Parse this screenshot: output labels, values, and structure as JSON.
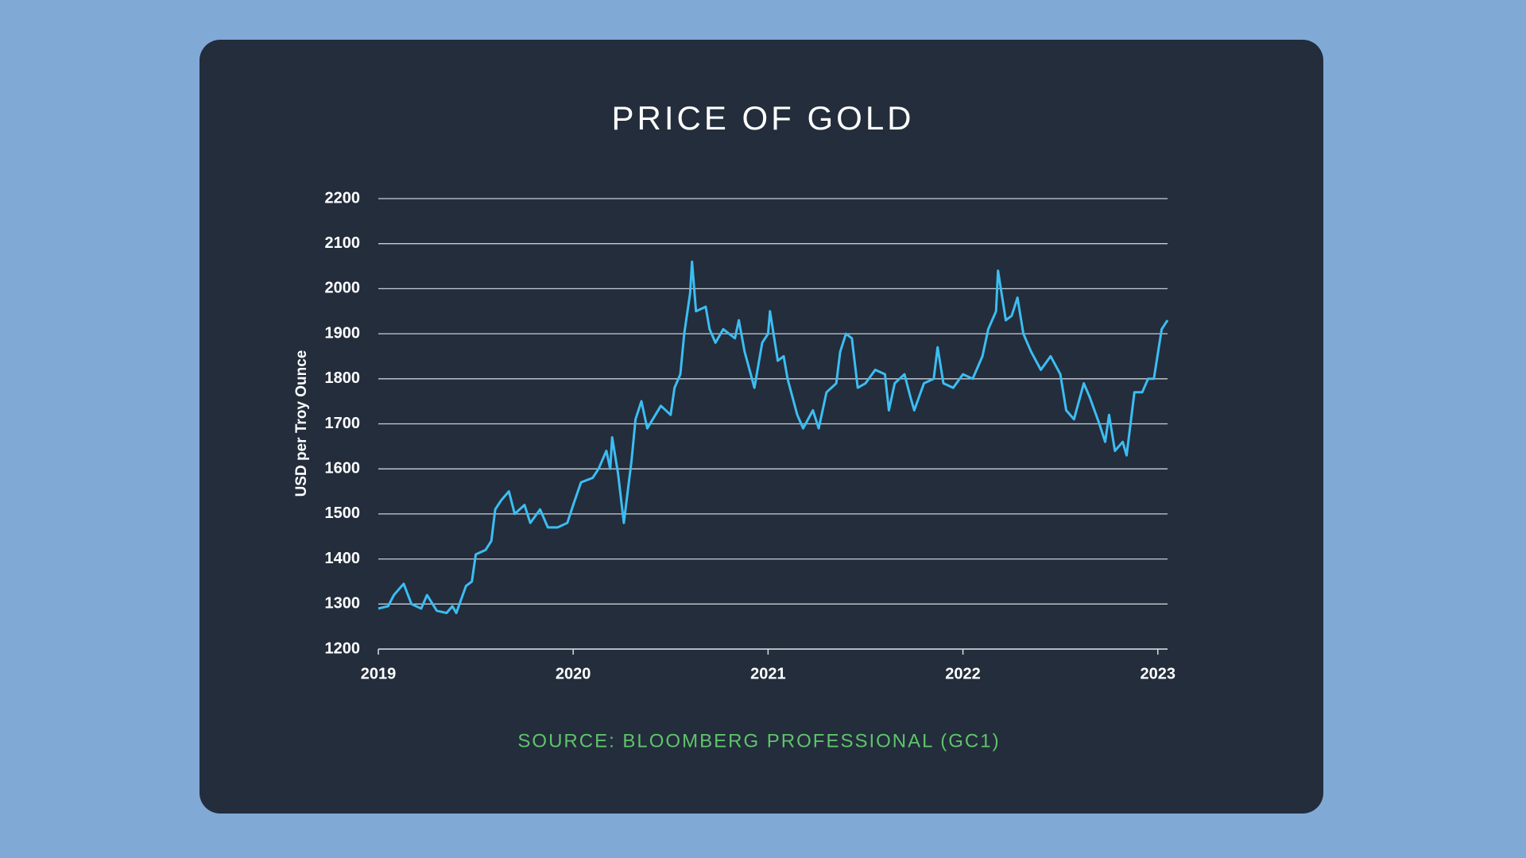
{
  "chart_data": {
    "type": "line",
    "title": "PRICE OF GOLD",
    "y_label": "USD per Troy Ounce",
    "source": "SOURCE: BLOOMBERG PROFESSIONAL (GC1)",
    "xlim": [
      2019,
      2023.05
    ],
    "xticks": [
      2019,
      2020,
      2021,
      2022,
      2023
    ],
    "ylim": [
      1200,
      2200
    ],
    "yticks": [
      1200,
      1300,
      1400,
      1500,
      1600,
      1700,
      1800,
      1900,
      2000,
      2100,
      2200
    ],
    "grid": true,
    "series": [
      {
        "color": "#3cbdf2",
        "x": [
          2019.0,
          2019.05,
          2019.08,
          2019.13,
          2019.17,
          2019.22,
          2019.25,
          2019.3,
          2019.35,
          2019.38,
          2019.4,
          2019.45,
          2019.48,
          2019.5,
          2019.55,
          2019.58,
          2019.6,
          2019.63,
          2019.67,
          2019.7,
          2019.75,
          2019.78,
          2019.83,
          2019.87,
          2019.92,
          2019.97,
          2020.0,
          2020.04,
          2020.1,
          2020.13,
          2020.17,
          2020.19,
          2020.2,
          2020.23,
          2020.26,
          2020.3,
          2020.32,
          2020.35,
          2020.38,
          2020.45,
          2020.5,
          2020.52,
          2020.55,
          2020.57,
          2020.6,
          2020.61,
          2020.63,
          2020.68,
          2020.7,
          2020.73,
          2020.77,
          2020.83,
          2020.85,
          2020.88,
          2020.93,
          2020.97,
          2021.0,
          2021.01,
          2021.05,
          2021.08,
          2021.1,
          2021.15,
          2021.18,
          2021.23,
          2021.26,
          2021.3,
          2021.35,
          2021.37,
          2021.4,
          2021.43,
          2021.46,
          2021.5,
          2021.55,
          2021.6,
          2021.62,
          2021.65,
          2021.7,
          2021.73,
          2021.75,
          2021.8,
          2021.85,
          2021.87,
          2021.9,
          2021.95,
          2022.0,
          2022.05,
          2022.1,
          2022.13,
          2022.17,
          2022.18,
          2022.22,
          2022.25,
          2022.28,
          2022.31,
          2022.35,
          2022.4,
          2022.45,
          2022.5,
          2022.53,
          2022.57,
          2022.62,
          2022.65,
          2022.7,
          2022.73,
          2022.75,
          2022.78,
          2022.82,
          2022.84,
          2022.88,
          2022.92,
          2022.95,
          2022.98,
          2023.02,
          2023.05
        ],
        "values": [
          1290,
          1295,
          1320,
          1345,
          1300,
          1290,
          1320,
          1285,
          1280,
          1295,
          1280,
          1340,
          1350,
          1410,
          1420,
          1440,
          1510,
          1530,
          1550,
          1500,
          1520,
          1480,
          1510,
          1470,
          1470,
          1480,
          1520,
          1570,
          1580,
          1600,
          1640,
          1600,
          1670,
          1590,
          1480,
          1620,
          1710,
          1750,
          1690,
          1740,
          1720,
          1780,
          1810,
          1900,
          1990,
          2060,
          1950,
          1960,
          1910,
          1880,
          1910,
          1890,
          1930,
          1860,
          1780,
          1880,
          1900,
          1950,
          1840,
          1850,
          1800,
          1720,
          1690,
          1730,
          1690,
          1770,
          1790,
          1860,
          1900,
          1890,
          1780,
          1790,
          1820,
          1810,
          1730,
          1790,
          1810,
          1760,
          1730,
          1790,
          1800,
          1870,
          1790,
          1780,
          1810,
          1800,
          1850,
          1910,
          1950,
          2040,
          1930,
          1940,
          1980,
          1900,
          1860,
          1820,
          1850,
          1810,
          1730,
          1710,
          1790,
          1760,
          1700,
          1660,
          1720,
          1640,
          1660,
          1630,
          1770,
          1770,
          1800,
          1800,
          1910,
          1930
        ]
      }
    ]
  }
}
